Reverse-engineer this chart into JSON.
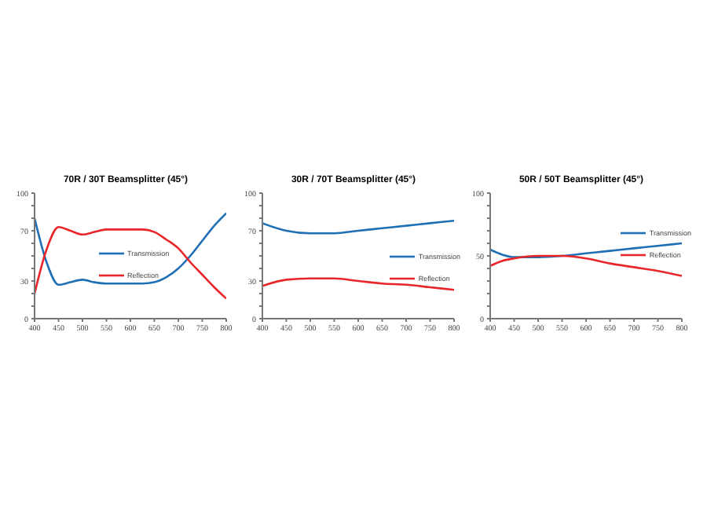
{
  "chart_data": [
    {
      "type": "line",
      "title": "70R / 30T Beamsplitter (45°)",
      "x": [
        400,
        425,
        450,
        475,
        500,
        525,
        550,
        575,
        600,
        625,
        650,
        675,
        700,
        725,
        750,
        775,
        800
      ],
      "series": [
        {
          "name": "Transmission",
          "color": "#1f6fb4",
          "values": [
            80,
            45,
            27,
            29,
            31,
            29,
            28,
            28,
            28,
            28,
            29,
            33,
            40,
            50,
            62,
            74,
            84
          ]
        },
        {
          "name": "Reflection",
          "color": "#e8262a",
          "values": [
            20,
            55,
            73,
            70,
            67,
            69,
            71,
            71,
            71,
            71,
            69,
            63,
            56,
            45,
            35,
            25,
            16
          ]
        }
      ],
      "xlim": [
        400,
        800
      ],
      "xticks": [
        400,
        450,
        500,
        550,
        600,
        650,
        700,
        750,
        800
      ],
      "ylim": [
        0,
        100
      ],
      "yticks": [
        0,
        {
          "value": 10,
          "label": null
        },
        {
          "value": 20,
          "label": null
        },
        30,
        {
          "value": 40,
          "label": null
        },
        {
          "value": 50,
          "label": null
        },
        {
          "value": 60,
          "label": null
        },
        70,
        {
          "value": 80,
          "label": null
        },
        {
          "value": 90,
          "label": null
        },
        100
      ],
      "grid": false,
      "legend": "center",
      "marker": "none",
      "line_style": "solid"
    },
    {
      "type": "line",
      "title": "30R / 70T Beamsplitter (45°)",
      "x": [
        400,
        450,
        500,
        550,
        600,
        650,
        700,
        750,
        800
      ],
      "series": [
        {
          "name": "Transmission",
          "color": "#1f6fb4",
          "values": [
            76,
            70,
            68,
            68,
            70,
            72,
            74,
            76,
            78
          ]
        },
        {
          "name": "Reflection",
          "color": "#e8262a",
          "values": [
            26,
            31,
            32,
            32,
            30,
            28,
            27,
            25,
            23
          ]
        }
      ],
      "xlim": [
        400,
        800
      ],
      "xticks": [
        400,
        450,
        500,
        550,
        600,
        650,
        700,
        750,
        800
      ],
      "ylim": [
        0,
        100
      ],
      "yticks": [
        0,
        {
          "value": 10,
          "label": null
        },
        {
          "value": 20,
          "label": null
        },
        30,
        {
          "value": 40,
          "label": null
        },
        {
          "value": 50,
          "label": null
        },
        {
          "value": 60,
          "label": null
        },
        70,
        {
          "value": 80,
          "label": null
        },
        {
          "value": 90,
          "label": null
        },
        100
      ],
      "grid": false,
      "legend": "right",
      "marker": "none",
      "line_style": "solid"
    },
    {
      "type": "line",
      "title": "50R / 50T Beamsplitter (45°)",
      "x": [
        400,
        425,
        450,
        500,
        550,
        600,
        650,
        700,
        750,
        800
      ],
      "series": [
        {
          "name": "Transmission",
          "color": "#1f6fb4",
          "values": [
            55,
            51,
            49,
            49,
            50,
            52,
            54,
            56,
            58,
            60
          ]
        },
        {
          "name": "Reflection",
          "color": "#e8262a",
          "values": [
            42,
            46,
            48,
            50,
            50,
            48,
            44,
            41,
            38,
            34
          ]
        }
      ],
      "xlim": [
        400,
        800
      ],
      "xticks": [
        400,
        450,
        500,
        550,
        600,
        650,
        700,
        750,
        800
      ],
      "ylim": [
        0,
        100
      ],
      "yticks": [
        0,
        {
          "value": 10,
          "label": null
        },
        {
          "value": 20,
          "label": null
        },
        {
          "value": 30,
          "label": null
        },
        {
          "value": 40,
          "label": null
        },
        50,
        {
          "value": 60,
          "label": null
        },
        {
          "value": 70,
          "label": null
        },
        {
          "value": 80,
          "label": null
        },
        {
          "value": 90,
          "label": null
        },
        100
      ],
      "grid": false,
      "legend": "top right",
      "marker": "none",
      "line_style": "solid"
    }
  ]
}
